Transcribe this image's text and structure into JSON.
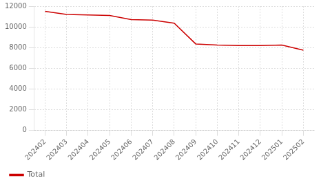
{
  "chart_data": {
    "type": "line",
    "categories": [
      "202402",
      "202403",
      "202404",
      "202405",
      "202406",
      "202407",
      "202408",
      "202409",
      "202410",
      "202411",
      "202412",
      "202501",
      "202502"
    ],
    "series": [
      {
        "name": "Total",
        "color": "#cc0000",
        "values": [
          11500,
          11200,
          11150,
          11100,
          10700,
          10650,
          10350,
          8350,
          8250,
          8200,
          8200,
          8250,
          7750
        ]
      }
    ],
    "ylim": [
      0,
      12000
    ],
    "yticks": [
      0,
      2000,
      4000,
      6000,
      8000,
      10000,
      12000
    ],
    "grid": true,
    "legend": "lower left"
  }
}
